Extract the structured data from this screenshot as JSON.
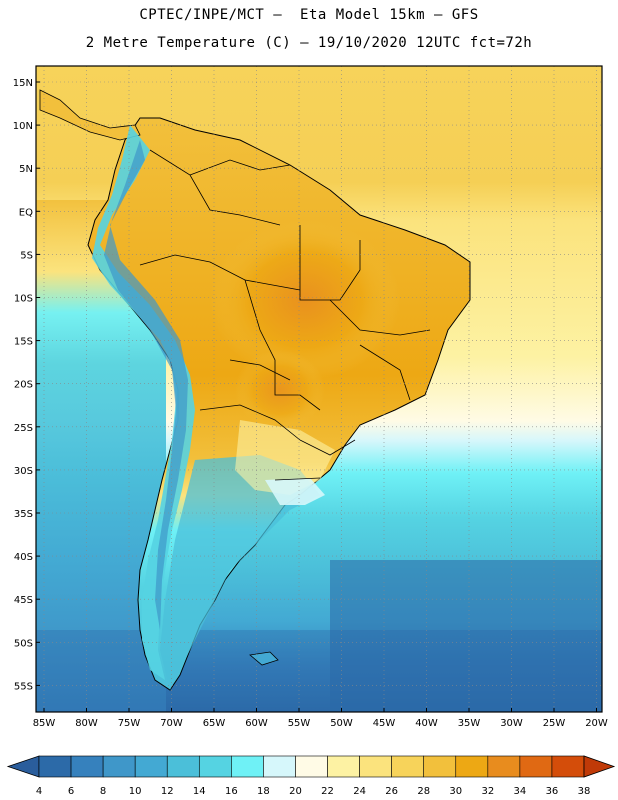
{
  "map": {
    "title_line1": "CPTEC/INPE/MCT –  Eta Model 15km – GFS",
    "title_line2": "2 Metre Temperature (C) – 19/10/2020 12UTC fct=72h",
    "lat_labels": [
      "15N",
      "10N",
      "5N",
      "EQ",
      "5S",
      "10S",
      "15S",
      "20S",
      "25S",
      "30S",
      "35S",
      "40S",
      "45S",
      "50S",
      "55S"
    ],
    "lon_labels": [
      "85W",
      "80W",
      "75W",
      "70W",
      "65W",
      "60W",
      "55W",
      "50W",
      "45W",
      "40W",
      "35W",
      "30W",
      "25W",
      "20W"
    ]
  },
  "colorbar": {
    "labels": [
      "4",
      "6",
      "8",
      "10",
      "12",
      "14",
      "16",
      "18",
      "20",
      "22",
      "24",
      "26",
      "28",
      "30",
      "32",
      "34",
      "36",
      "38"
    ],
    "colors": [
      "#2c6aa8",
      "#3681bd",
      "#3f97c9",
      "#43a9d3",
      "#4bbfd9",
      "#55d3e2",
      "#6ff1f6",
      "#d6f7fb",
      "#fffbe6",
      "#fdf2a3",
      "#fbe37d",
      "#f7d35a",
      "#f2c03c",
      "#eda814",
      "#e88c1e",
      "#e06913",
      "#d44d0a"
    ],
    "under_color": "#2a5d9c",
    "over_color": "#c03a08"
  }
}
